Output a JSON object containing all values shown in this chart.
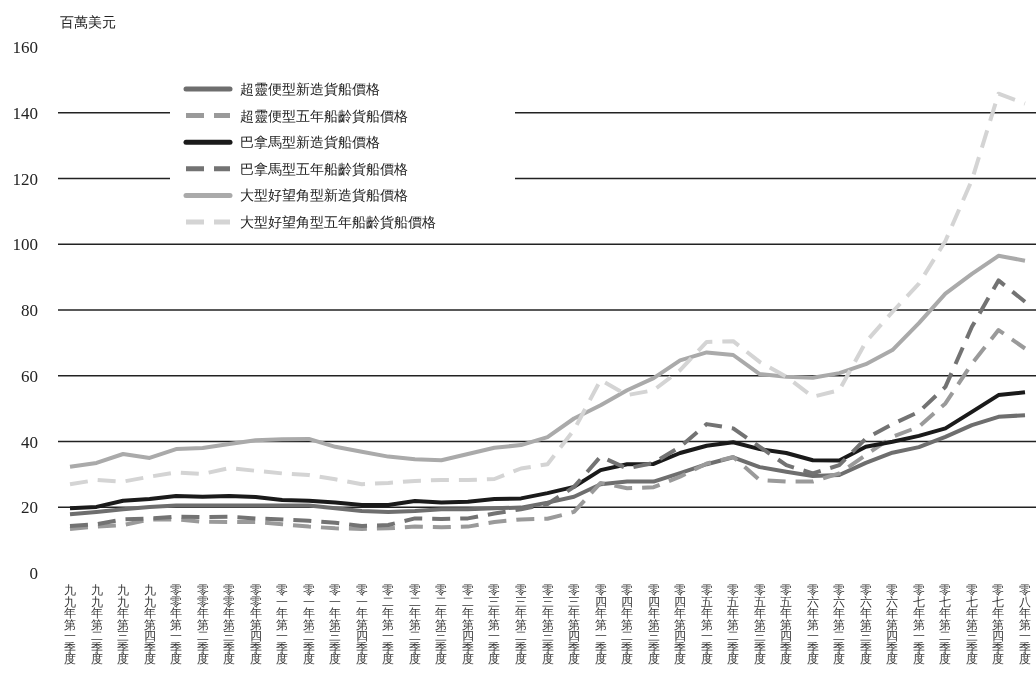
{
  "chart_data": {
    "type": "line",
    "ylabel": "百萬美元",
    "categories": [
      "九九年第一季度",
      "九九年第二季度",
      "九九年第三季度",
      "九九年第四季度",
      "零零年第一季度",
      "零零年第二季度",
      "零零年第三季度",
      "零零年第四季度",
      "零一年第一季度",
      "零一年第二季度",
      "零一年第三季度",
      "零一年第四季度",
      "零二年第一季度",
      "零二年第二季度",
      "零二年第三季度",
      "零二年第四季度",
      "零三年第一季度",
      "零三年第二季度",
      "零三年第三季度",
      "零三年第四季度",
      "零四年第一季度",
      "零四年第二季度",
      "零四年第三季度",
      "零四年第四季度",
      "零五年第一季度",
      "零五年第二季度",
      "零五年第三季度",
      "零五年第四季度",
      "零六年第一季度",
      "零六年第二季度",
      "零六年第三季度",
      "零六年第四季度",
      "零七年第一季度",
      "零七年第二季度",
      "零七年第三季度",
      "零七年第四季度",
      "零八年第一季度"
    ],
    "series": [
      {
        "name": "超靈便型新造貨船價格",
        "color": "#6e6e6e",
        "line_style": "solid",
        "values": [
          17.9,
          18.6,
          19.4,
          20.1,
          20.5,
          20.5,
          20.5,
          20.5,
          20.5,
          20.5,
          19.7,
          18.9,
          18.6,
          18.9,
          19.4,
          19.4,
          19.7,
          19.9,
          21.4,
          23.2,
          27,
          27.8,
          27.8,
          30.4,
          33.1,
          35.2,
          32.2,
          30.8,
          29.5,
          29.8,
          33.5,
          36.6,
          38.3,
          41.4,
          45,
          47.5,
          48
        ]
      },
      {
        "name": "超靈便型五年船齡貨船價格",
        "color": "#9a9a9a",
        "line_style": "dashed",
        "values": [
          13.4,
          14.1,
          14.6,
          16.3,
          16.3,
          15.6,
          15.5,
          15.5,
          14.8,
          14.1,
          13.6,
          13.4,
          13.6,
          14.1,
          13.9,
          14.1,
          15.5,
          16.3,
          16.5,
          18.6,
          27.4,
          25.8,
          26.1,
          29.3,
          33.3,
          35.3,
          28.3,
          27.8,
          27.8,
          30.3,
          35.9,
          41.4,
          44.5,
          51.6,
          63.7,
          73.9,
          68.3
        ]
      },
      {
        "name": "巴拿馬型新造貨船價格",
        "color": "#1a1a1a",
        "line_style": "solid",
        "values": [
          19.7,
          20.1,
          22,
          22.5,
          23.4,
          23.2,
          23.4,
          23.1,
          22.2,
          22,
          21.4,
          20.7,
          20.7,
          21.9,
          21.4,
          21.7,
          22.5,
          22.7,
          24.3,
          26.2,
          31.3,
          33.1,
          33.2,
          36.5,
          38.7,
          39.8,
          37.7,
          36.5,
          34.3,
          34.2,
          38.4,
          39.9,
          41.7,
          44,
          49,
          54.1,
          55
        ]
      },
      {
        "name": "巴拿馬型五年船齡貨船價格",
        "color": "#737373",
        "line_style": "dashed",
        "values": [
          14.3,
          14.8,
          16.3,
          16.6,
          17.1,
          17,
          17.1,
          16.6,
          16.3,
          15.9,
          15.3,
          14.3,
          14.6,
          16.6,
          16.4,
          16.6,
          18.1,
          19.4,
          21,
          26.2,
          35.4,
          31.8,
          33.5,
          38.4,
          45.3,
          44,
          38.4,
          32.8,
          30.3,
          32.8,
          40.9,
          45.3,
          49,
          56.6,
          74.9,
          89,
          82.5
        ]
      },
      {
        "name": "大型好望角型新造貨船價格",
        "color": "#aaaaaa",
        "line_style": "solid",
        "values": [
          32.3,
          33.5,
          36.2,
          35,
          37.7,
          38,
          39.2,
          40.4,
          40.7,
          40.8,
          38.4,
          36.9,
          35.4,
          34.6,
          34.3,
          36.2,
          38.1,
          38.9,
          41.3,
          47,
          51,
          55.6,
          59.3,
          64.7,
          67.1,
          66.3,
          60.5,
          59.7,
          59.4,
          60.8,
          63.5,
          67.8,
          76,
          85,
          91,
          96.5,
          95
        ]
      },
      {
        "name": "大型好望角型五年船齡貨船價格",
        "color": "#d4d4d4",
        "line_style": "dashed",
        "values": [
          27,
          28.3,
          27.8,
          29.3,
          30.6,
          30.1,
          31.9,
          31.1,
          30.3,
          29.8,
          28.5,
          27,
          27.4,
          28,
          28.3,
          28.3,
          28.6,
          31.8,
          33.1,
          43.5,
          58.7,
          54.1,
          55.6,
          61.7,
          70.3,
          70.5,
          64.2,
          59.7,
          53.6,
          55.6,
          70.3,
          79.4,
          88,
          101,
          119.5,
          145.8,
          142.8
        ]
      }
    ],
    "ylim": [
      0,
      160
    ],
    "yticks": [
      0,
      20,
      40,
      60,
      80,
      100,
      120,
      140,
      160
    ],
    "grid": "y",
    "legend": "top left"
  }
}
